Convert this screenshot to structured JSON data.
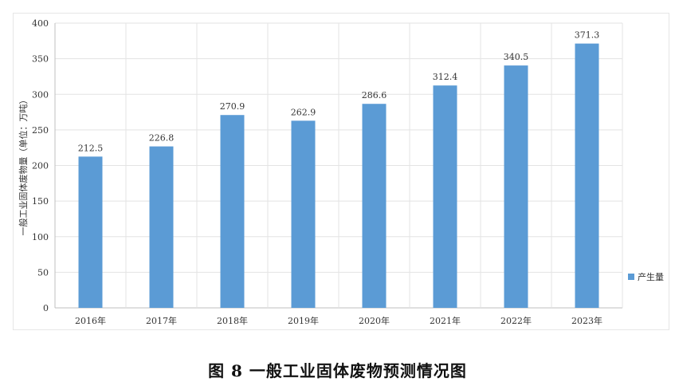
{
  "caption": "图 8  一般工业固体废物预测情况图",
  "colors": {
    "bar": "#5b9bd5",
    "grid": "#e3e3e3",
    "axis": "#bfbfbf"
  },
  "chart_data": {
    "type": "bar",
    "categories": [
      "2016年",
      "2017年",
      "2018年",
      "2019年",
      "2020年",
      "2021年",
      "2022年",
      "2023年"
    ],
    "series": [
      {
        "name": "产生量",
        "values": [
          212.5,
          226.8,
          270.9,
          262.9,
          286.6,
          312.4,
          340.5,
          371.3
        ]
      }
    ],
    "data_labels": [
      "212.5",
      "226.8",
      "270.9",
      "262.9",
      "286.6",
      "312.4",
      "340.5",
      "371.3"
    ],
    "ylabel": "一般工业固体废物量（单位：万吨）",
    "xlabel": "",
    "ylim": [
      0,
      400
    ],
    "yticks": [
      0,
      50,
      100,
      150,
      200,
      250,
      300,
      350,
      400
    ],
    "ytick_labels": [
      "0",
      "50",
      "100",
      "150",
      "200",
      "250",
      "300",
      "350",
      "400"
    ],
    "grid": true,
    "legend_position": "right"
  }
}
